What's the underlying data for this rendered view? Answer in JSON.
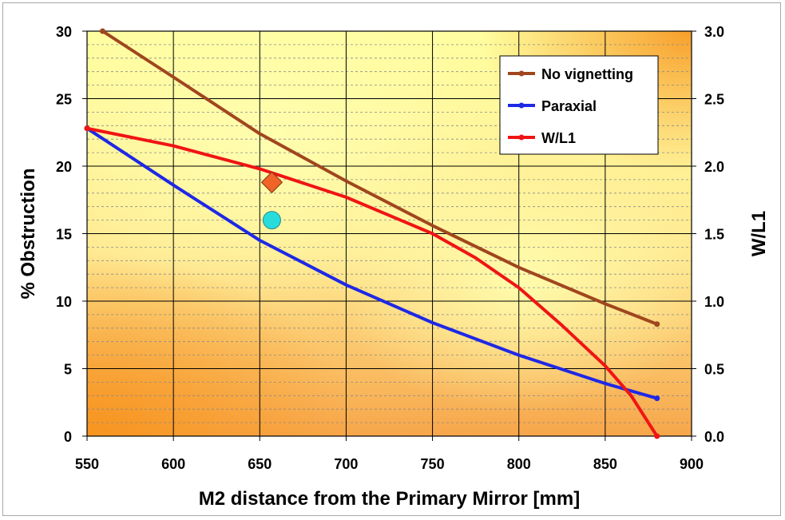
{
  "chart_data": {
    "type": "line",
    "title": "",
    "xlabel": "M2 distance from the Primary Mirror [mm]",
    "ylabel": "% Obstruction",
    "y2label": "W/L1",
    "xlim": [
      550,
      900
    ],
    "ylim": [
      0,
      30
    ],
    "y2lim": [
      0.0,
      3.0
    ],
    "x_ticks": [
      "550",
      "600",
      "650",
      "700",
      "750",
      "800",
      "850",
      "900"
    ],
    "y_ticks": [
      "0",
      "5",
      "10",
      "15",
      "20",
      "25",
      "30"
    ],
    "y2_ticks": [
      "0.0",
      "0.5",
      "1.0",
      "1.5",
      "2.0",
      "2.5",
      "3.0"
    ],
    "grid": {
      "major_vertical": true,
      "major_horizontal": true,
      "minor_horizontal": true
    },
    "legend_position": "top-right",
    "series": [
      {
        "name": "No vignetting",
        "axis": "left",
        "color": "#a0461e",
        "x": [
          559,
          600,
          650,
          700,
          750,
          800,
          850,
          880
        ],
        "y": [
          30.0,
          26.6,
          22.4,
          18.9,
          15.6,
          12.5,
          9.8,
          8.3
        ]
      },
      {
        "name": "Paraxial",
        "axis": "left",
        "color": "#1e28e6",
        "x": [
          550,
          600,
          650,
          700,
          750,
          800,
          850,
          880
        ],
        "y": [
          22.8,
          18.6,
          14.5,
          11.2,
          8.4,
          6.0,
          3.9,
          2.8
        ]
      },
      {
        "name": "W/L1",
        "axis": "right",
        "color": "#f01414",
        "x": [
          550,
          600,
          650,
          700,
          750,
          775,
          800,
          825,
          850,
          865,
          880
        ],
        "y": [
          2.28,
          2.15,
          1.98,
          1.77,
          1.5,
          1.32,
          1.1,
          0.82,
          0.52,
          0.3,
          0.0
        ]
      }
    ],
    "markers": [
      {
        "shape": "diamond",
        "color": "#f06428",
        "x": 657,
        "y": 18.8
      },
      {
        "shape": "circle",
        "color": "#28dcdc",
        "x": 657,
        "y": 16.0
      }
    ]
  }
}
